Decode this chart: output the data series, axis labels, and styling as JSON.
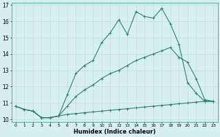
{
  "xlabel": "Humidex (Indice chaleur)",
  "background_color": "#d6f0ef",
  "grid_color": "#c8dede",
  "line_color": "#2e7d6e",
  "xlim": [
    -0.5,
    23.5
  ],
  "ylim": [
    9.85,
    17.15
  ],
  "yticks": [
    10,
    11,
    12,
    13,
    14,
    15,
    16,
    17
  ],
  "xticks": [
    0,
    1,
    2,
    3,
    4,
    5,
    6,
    7,
    8,
    9,
    10,
    11,
    12,
    13,
    14,
    15,
    16,
    17,
    18,
    19,
    20,
    21,
    22,
    23
  ],
  "line1_x": [
    0,
    1,
    2,
    3,
    4,
    5,
    6,
    7,
    8,
    9,
    10,
    11,
    12,
    13,
    14,
    15,
    16,
    17,
    18,
    19,
    20,
    21,
    22,
    23
  ],
  "line1_y": [
    10.8,
    10.6,
    10.5,
    10.1,
    10.1,
    10.2,
    10.3,
    10.35,
    10.4,
    10.45,
    10.5,
    10.55,
    10.6,
    10.65,
    10.7,
    10.75,
    10.8,
    10.85,
    10.9,
    10.95,
    11.0,
    11.05,
    11.1,
    11.1
  ],
  "line2_x": [
    0,
    1,
    2,
    3,
    4,
    5,
    6,
    7,
    8,
    9,
    10,
    11,
    12,
    13,
    14,
    15,
    16,
    17,
    18,
    19,
    20,
    21,
    22,
    23
  ],
  "line2_y": [
    10.8,
    10.6,
    10.5,
    10.1,
    10.1,
    10.2,
    10.8,
    11.4,
    11.8,
    12.1,
    12.5,
    12.8,
    13.0,
    13.3,
    13.6,
    13.8,
    14.0,
    14.2,
    14.4,
    13.8,
    13.5,
    12.5,
    11.2,
    11.1
  ],
  "line3_x": [
    0,
    1,
    2,
    3,
    4,
    5,
    6,
    7,
    8,
    9,
    10,
    11,
    12,
    13,
    14,
    15,
    16,
    17,
    18,
    19,
    20,
    21,
    22,
    23
  ],
  "line3_y": [
    10.8,
    10.6,
    10.5,
    10.1,
    10.1,
    10.2,
    11.5,
    12.8,
    13.3,
    13.6,
    14.7,
    15.3,
    16.1,
    15.2,
    16.6,
    16.3,
    16.2,
    16.8,
    15.85,
    14.6,
    12.25,
    11.6,
    11.1,
    11.1
  ]
}
